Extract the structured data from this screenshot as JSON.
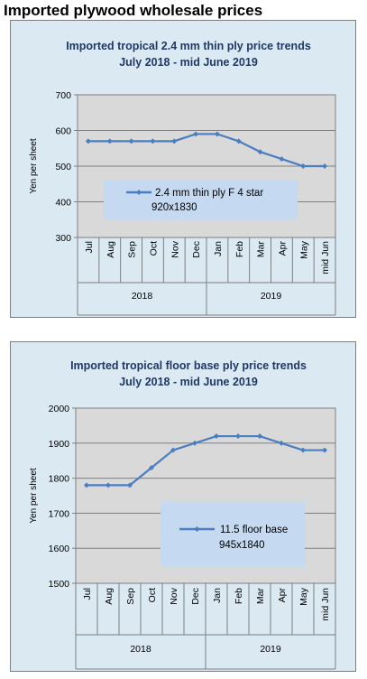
{
  "page_title": "Imported plywood wholesale prices",
  "chart_data": [
    {
      "type": "line",
      "title": "Imported tropical 2.4 mm thin ply price trends",
      "subtitle": "July 2018 - mid June 2019",
      "ylabel": "Yen per sheet",
      "xlabel": "",
      "ylim": [
        300,
        700
      ],
      "yticks": [
        "300",
        "400",
        "500",
        "600",
        "700"
      ],
      "categories": [
        "Jul",
        "Aug",
        "Sep",
        "Oct",
        "Nov",
        "Dec",
        "Jan",
        "Feb",
        "Mar",
        "Apr",
        "May",
        "mid Jun"
      ],
      "year_groups": [
        {
          "label": "2018",
          "count": 6
        },
        {
          "label": "2019",
          "count": 6
        }
      ],
      "series": [
        {
          "name": "2.4 mm thin ply F 4 star",
          "name_line2": "920x1830",
          "values": [
            570,
            570,
            570,
            570,
            570,
            590,
            590,
            570,
            540,
            520,
            500,
            500
          ]
        }
      ],
      "legend_position": "inside-bottom",
      "grid": true,
      "line_color": "#4a7ebf",
      "plot_bg": "#d9d9d9",
      "panel_bg": "#dbe9f3",
      "legend_bg": "#c5d9f1",
      "title_color": "#1f3864"
    },
    {
      "type": "line",
      "title": "Imported tropical floor base ply price trends",
      "subtitle": "July 2018 - mid June 2019",
      "ylabel": "Yen per sheet",
      "xlabel": "",
      "ylim": [
        1500,
        2000
      ],
      "yticks": [
        "1500",
        "1600",
        "1700",
        "1800",
        "1900",
        "2000"
      ],
      "categories": [
        "Jul",
        "Aug",
        "Sep",
        "Oct",
        "Nov",
        "Dec",
        "Jan",
        "Feb",
        "Mar",
        "Apr",
        "May",
        "mid Jun"
      ],
      "year_groups": [
        {
          "label": "2018",
          "count": 6
        },
        {
          "label": "2019",
          "count": 6
        }
      ],
      "series": [
        {
          "name": "11.5 floor base",
          "name_line2": "945x1840",
          "values": [
            1780,
            1780,
            1780,
            1830,
            1880,
            1900,
            1920,
            1920,
            1920,
            1900,
            1880,
            1880
          ]
        }
      ],
      "legend_position": "inside-bottom-right",
      "grid": true,
      "line_color": "#4a7ebf",
      "plot_bg": "#d9d9d9",
      "panel_bg": "#dbe9f3",
      "legend_bg": "#c5d9f1",
      "title_color": "#1f3864"
    }
  ]
}
